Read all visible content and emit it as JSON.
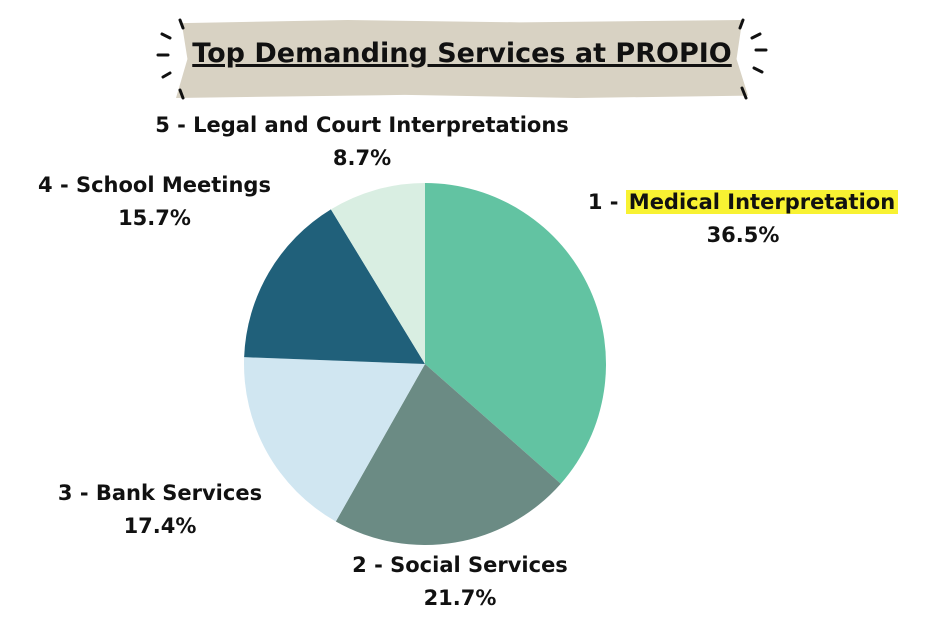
{
  "chart_data": {
    "type": "pie",
    "title": "Top Demanding Services at PROPIO",
    "slices": [
      {
        "label": "Medical Interpretation",
        "prefix": "1 - ",
        "value": 36.5,
        "display": "36.5%",
        "color": "#62c3a2",
        "highlight": true
      },
      {
        "label": "Social Services",
        "prefix": "2 - ",
        "value": 21.7,
        "display": "21.7%",
        "color": "#6b8b84"
      },
      {
        "label": "Bank Services",
        "prefix": "3 - ",
        "value": 17.4,
        "display": "17.4%",
        "color": "#d0e6f1"
      },
      {
        "label": "School Meetings",
        "prefix": "4 - ",
        "value": 15.7,
        "display": "15.7%",
        "color": "#20607a"
      },
      {
        "label": "Legal and Court Interpretations",
        "prefix": "5 - ",
        "value": 8.7,
        "display": "8.7%",
        "color": "#d9eee2"
      }
    ],
    "highlight_color": "#f8f232"
  }
}
